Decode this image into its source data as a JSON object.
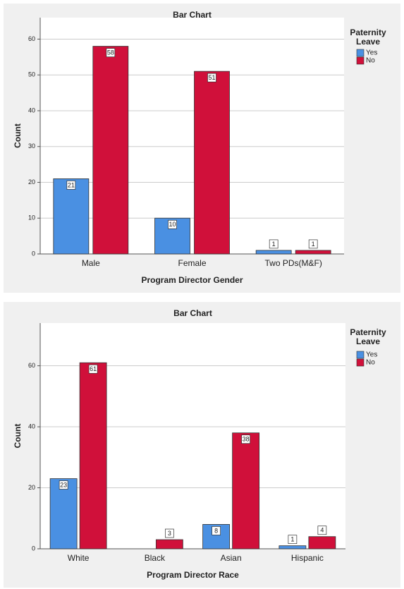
{
  "chart_data": [
    {
      "type": "bar",
      "title": "Bar Chart",
      "x_label": "Program Director Gender",
      "y_label": "Count",
      "legend_title": "Paternity Leave",
      "categories": [
        "Male",
        "Female",
        "Two PDs(M&F)"
      ],
      "series": [
        {
          "name": "Yes",
          "color": "#4a90e2",
          "values": [
            21,
            10,
            1
          ]
        },
        {
          "name": "No",
          "color": "#d0103a",
          "values": [
            58,
            51,
            1
          ]
        }
      ],
      "ylim": [
        0,
        66
      ],
      "yticks": [
        0,
        10,
        20,
        30,
        40,
        50,
        60
      ],
      "grid": true
    },
    {
      "type": "bar",
      "title": "Bar Chart",
      "x_label": "Program Director Race",
      "y_label": "Count",
      "legend_title": "Paternity Leave",
      "categories": [
        "White",
        "Black",
        "Asian",
        "Hispanic"
      ],
      "series": [
        {
          "name": "Yes",
          "color": "#4a90e2",
          "values": [
            23,
            null,
            8,
            1
          ]
        },
        {
          "name": "No",
          "color": "#d0103a",
          "values": [
            61,
            3,
            38,
            4
          ]
        }
      ],
      "ylim": [
        0,
        74
      ],
      "yticks": [
        0,
        20,
        40,
        60
      ],
      "grid": true
    }
  ]
}
